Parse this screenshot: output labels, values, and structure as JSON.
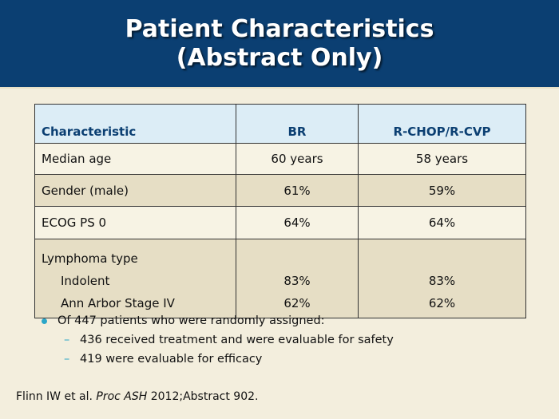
{
  "header": {
    "title_line1": "Patient Characteristics",
    "title_line2": "(Abstract Only)"
  },
  "table": {
    "columns": [
      "Characteristic",
      "BR",
      "R-CHOP/R-CVP"
    ],
    "rows": [
      {
        "label": "Median age",
        "br": "60 years",
        "rchop": "58 years"
      },
      {
        "label": "Gender (male)",
        "br": "61%",
        "rchop": "59%"
      },
      {
        "label": "ECOG PS 0",
        "br": "64%",
        "rchop": "64%"
      },
      {
        "label": "Lymphoma type",
        "sub": [
          {
            "label": "Indolent",
            "br": "83%",
            "rchop": "83%"
          },
          {
            "label": "Ann Arbor Stage IV",
            "br": "62%",
            "rchop": "62%"
          }
        ]
      }
    ]
  },
  "bullets": {
    "main": "Of 447 patients who were randomly assigned:",
    "sub": [
      "436 received treatment and were evaluable for safety",
      "419 were evaluable for efficacy"
    ],
    "dash": "–"
  },
  "footer": {
    "authors": "Flinn IW et al. ",
    "journal": "Proc ASH",
    "rest": " 2012;Abstract 902."
  },
  "colors": {
    "header_bg": "#0b3f72",
    "page_bg": "#f3eedd",
    "table_header_bg": "#dcedf6",
    "row_alt_bg": "#e6dec5",
    "bullet_accent": "#2aa6c8"
  }
}
